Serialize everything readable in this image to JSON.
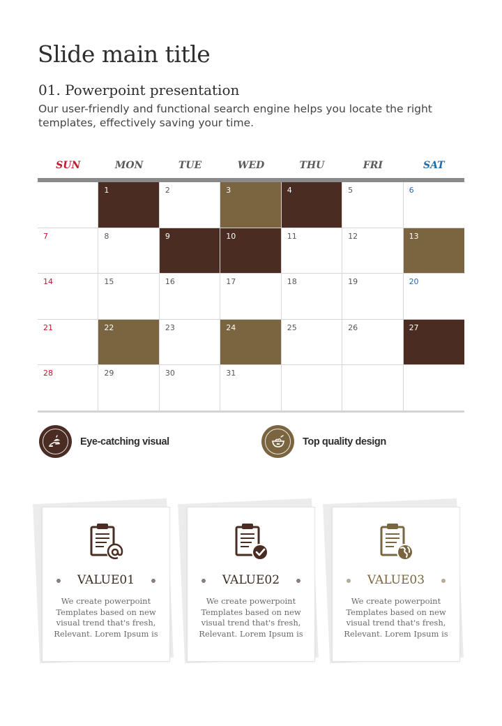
{
  "title": "Slide main title",
  "subtitle": "01. Powerpoint presentation",
  "description": "Our user-friendly and functional search engine helps you locate the right templates, effectively saving your time.",
  "calendar": {
    "days": [
      "SUN",
      "MON",
      "TUE",
      "WED",
      "THU",
      "FRI",
      "SAT"
    ],
    "weeks": [
      [
        "",
        "1",
        "2",
        "3",
        "4",
        "5",
        "6"
      ],
      [
        "7",
        "8",
        "9",
        "10",
        "11",
        "12",
        "13"
      ],
      [
        "14",
        "15",
        "16",
        "17",
        "18",
        "19",
        "20"
      ],
      [
        "21",
        "22",
        "23",
        "24",
        "25",
        "26",
        "27"
      ],
      [
        "28",
        "29",
        "30",
        "31",
        "",
        "",
        ""
      ]
    ],
    "highlight_dark": [
      "1",
      "4",
      "9",
      "10",
      "27"
    ],
    "highlight_olive": [
      "3",
      "13",
      "22",
      "24"
    ],
    "colors": {
      "dark": "#4a2c23",
      "olive": "#7a6540",
      "sunday": "#c0182a",
      "saturday": "#1f6aa8"
    }
  },
  "features": [
    {
      "label": "Eye-catching visual",
      "icon": "hand-bowl-icon",
      "color": "#4a2c23"
    },
    {
      "label": "Top quality design",
      "icon": "food-bowl-icon",
      "color": "#7a6540"
    }
  ],
  "cards": [
    {
      "title": "VALUE01",
      "text": "We create powerpoint Templates based on new visual trend that's fresh, Relevant. Lorem Ipsum is",
      "icon": "document-at-icon"
    },
    {
      "title": "VALUE02",
      "text": "We create powerpoint Templates based on new visual trend that's fresh, Relevant. Lorem Ipsum is",
      "icon": "document-check-icon"
    },
    {
      "title": "VALUE03",
      "text": "We create powerpoint Templates based on new visual trend that's fresh, Relevant. Lorem Ipsum is",
      "icon": "document-globe-icon"
    }
  ]
}
